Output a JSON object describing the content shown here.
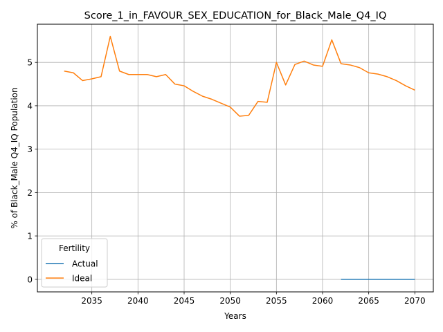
{
  "chart_data": {
    "type": "line",
    "title": "Score_1_in_FAVOUR_SEX_EDUCATION_for_Black_Male_Q4_IQ",
    "xlabel": "Years",
    "ylabel": "% of Black_Male Q4_IQ Population",
    "xlim": [
      2029.1,
      2072.0
    ],
    "ylim": [
      -0.29,
      5.88
    ],
    "xticks": [
      2035,
      2040,
      2045,
      2050,
      2055,
      2060,
      2065,
      2070
    ],
    "yticks": [
      0,
      1,
      2,
      3,
      4,
      5
    ],
    "grid": true,
    "legend": {
      "title": "Fertility",
      "position": "lower-left"
    },
    "series": [
      {
        "name": "Actual",
        "color": "#1f77b4",
        "x": [
          2062,
          2063,
          2064,
          2065,
          2066,
          2067,
          2068,
          2069,
          2070
        ],
        "y": [
          0,
          0,
          0,
          0,
          0,
          0,
          0,
          0,
          0
        ]
      },
      {
        "name": "Ideal",
        "color": "#ff7f0e",
        "x": [
          2032,
          2033,
          2034,
          2035,
          2036,
          2037,
          2038,
          2039,
          2040,
          2041,
          2042,
          2043,
          2044,
          2045,
          2046,
          2047,
          2048,
          2049,
          2050,
          2051,
          2052,
          2053,
          2054,
          2055,
          2056,
          2057,
          2058,
          2059,
          2060,
          2061,
          2062,
          2063,
          2064,
          2065,
          2066,
          2067,
          2068,
          2069,
          2070
        ],
        "y": [
          4.8,
          4.76,
          4.58,
          4.62,
          4.67,
          5.6,
          4.8,
          4.72,
          4.72,
          4.72,
          4.67,
          4.72,
          4.5,
          4.46,
          4.33,
          4.22,
          4.15,
          4.06,
          3.97,
          3.76,
          3.78,
          4.1,
          4.08,
          5.0,
          4.48,
          4.95,
          5.03,
          4.94,
          4.91,
          5.52,
          4.97,
          4.94,
          4.88,
          4.76,
          4.73,
          4.67,
          4.58,
          4.46,
          4.36
        ]
      }
    ]
  }
}
